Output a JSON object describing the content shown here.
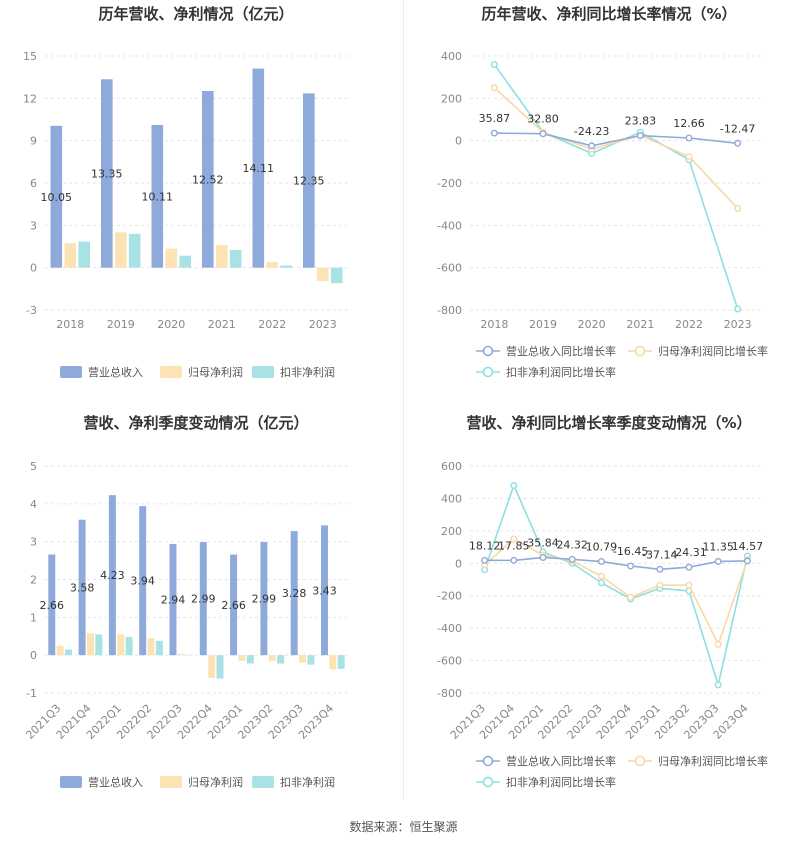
{
  "colors": {
    "revenue": "#8eaadb",
    "net_profit": "#fde3b3",
    "deducted_profit": "#a8e2e4",
    "line_revenue": "#8eaadb",
    "line_net": "#f9d8a6",
    "line_deducted": "#8edfe0",
    "axis_text": "#888888",
    "grid": "#e6e6e6",
    "label": "#333333"
  },
  "chart_data": [
    {
      "type": "bar",
      "title": "历年营收、净利情况（亿元）",
      "categories": [
        "2018",
        "2019",
        "2020",
        "2021",
        "2022",
        "2023"
      ],
      "ylim": [
        -3,
        15
      ],
      "yticks": [
        -3,
        0,
        3,
        6,
        9,
        12,
        15
      ],
      "series": [
        {
          "name": "营业总收入",
          "color_key": "revenue",
          "values": [
            10.05,
            13.35,
            10.11,
            12.52,
            14.11,
            12.35
          ],
          "labels": [
            "10.05",
            "13.35",
            "10.11",
            "12.52",
            "14.11",
            "12.35"
          ]
        },
        {
          "name": "归母净利润",
          "color_key": "net_profit",
          "values": [
            1.75,
            2.5,
            1.35,
            1.6,
            0.4,
            -0.95
          ]
        },
        {
          "name": "扣非净利润",
          "color_key": "deducted_profit",
          "values": [
            1.85,
            2.4,
            0.85,
            1.25,
            0.15,
            -1.1
          ]
        }
      ]
    },
    {
      "type": "line",
      "title": "历年营收、净利同比增长率情况（%）",
      "categories": [
        "2018",
        "2019",
        "2020",
        "2021",
        "2022",
        "2023"
      ],
      "ylim": [
        -800,
        400
      ],
      "yticks": [
        -800,
        -600,
        -400,
        -200,
        0,
        200,
        400
      ],
      "series": [
        {
          "name": "营业总收入同比增长率",
          "color_key": "line_revenue",
          "values": [
            35.87,
            32.8,
            -24.23,
            23.83,
            12.66,
            -12.47
          ],
          "labels": [
            "35.87",
            "32.80",
            "-24.23",
            "23.83",
            "12.66",
            "-12.47"
          ]
        },
        {
          "name": "归母净利润同比增长率",
          "color_key": "line_net",
          "values": [
            250,
            40,
            -40,
            25,
            -75,
            -320
          ]
        },
        {
          "name": "扣非净利润同比增长率",
          "color_key": "line_deducted",
          "values": [
            360,
            40,
            -60,
            40,
            -90,
            -795
          ]
        }
      ]
    },
    {
      "type": "bar",
      "title": "营收、净利季度变动情况（亿元）",
      "categories": [
        "2021Q3",
        "2021Q4",
        "2022Q1",
        "2022Q2",
        "2022Q3",
        "2022Q4",
        "2023Q1",
        "2023Q2",
        "2023Q3",
        "2023Q4"
      ],
      "ylim": [
        -1,
        5
      ],
      "yticks": [
        -1,
        0,
        1,
        2,
        3,
        4,
        5
      ],
      "series": [
        {
          "name": "营业总收入",
          "color_key": "revenue",
          "values": [
            2.66,
            3.58,
            4.23,
            3.94,
            2.94,
            2.99,
            2.66,
            2.99,
            3.28,
            3.43
          ],
          "labels": [
            "2.66",
            "3.58",
            "4.23",
            "3.94",
            "2.94",
            "2.99",
            "2.66",
            "2.99",
            "3.28",
            "3.43"
          ]
        },
        {
          "name": "归母净利润",
          "color_key": "net_profit",
          "values": [
            0.25,
            0.58,
            0.55,
            0.45,
            0.03,
            -0.6,
            -0.15,
            -0.15,
            -0.2,
            -0.38
          ]
        },
        {
          "name": "扣非净利润",
          "color_key": "deducted_profit",
          "values": [
            0.15,
            0.55,
            0.48,
            0.38,
            0.01,
            -0.62,
            -0.22,
            -0.22,
            -0.25,
            -0.36
          ]
        }
      ]
    },
    {
      "type": "line",
      "title": "营收、净利同比增长率季度变动情况（%）",
      "categories": [
        "2021Q3",
        "2021Q4",
        "2022Q1",
        "2022Q2",
        "2022Q3",
        "2022Q4",
        "2023Q1",
        "2023Q2",
        "2023Q3",
        "2023Q4"
      ],
      "ylim": [
        -800,
        600
      ],
      "yticks": [
        -800,
        -600,
        -400,
        -200,
        0,
        200,
        400,
        600
      ],
      "series": [
        {
          "name": "营业总收入同比增长率",
          "color_key": "line_revenue",
          "values": [
            18.12,
            17.85,
            35.84,
            24.32,
            10.79,
            -16.45,
            -37.14,
            -24.31,
            11.35,
            14.57
          ],
          "labels": [
            "18.12",
            "17.85",
            "35.84",
            "24.32",
            "10.79",
            "-16.45",
            "-37.14",
            "-24.31",
            "11.35",
            "14.57"
          ]
        },
        {
          "name": "归母净利润同比增长率",
          "color_key": "line_net",
          "values": [
            -10,
            150,
            50,
            15,
            -80,
            -210,
            -135,
            -135,
            -500,
            20
          ]
        },
        {
          "name": "扣非净利润同比增长率",
          "color_key": "line_deducted",
          "values": [
            -40,
            480,
            70,
            0,
            -120,
            -220,
            -155,
            -170,
            -750,
            45
          ]
        }
      ]
    }
  ],
  "source_text": "数据来源：恒生聚源"
}
